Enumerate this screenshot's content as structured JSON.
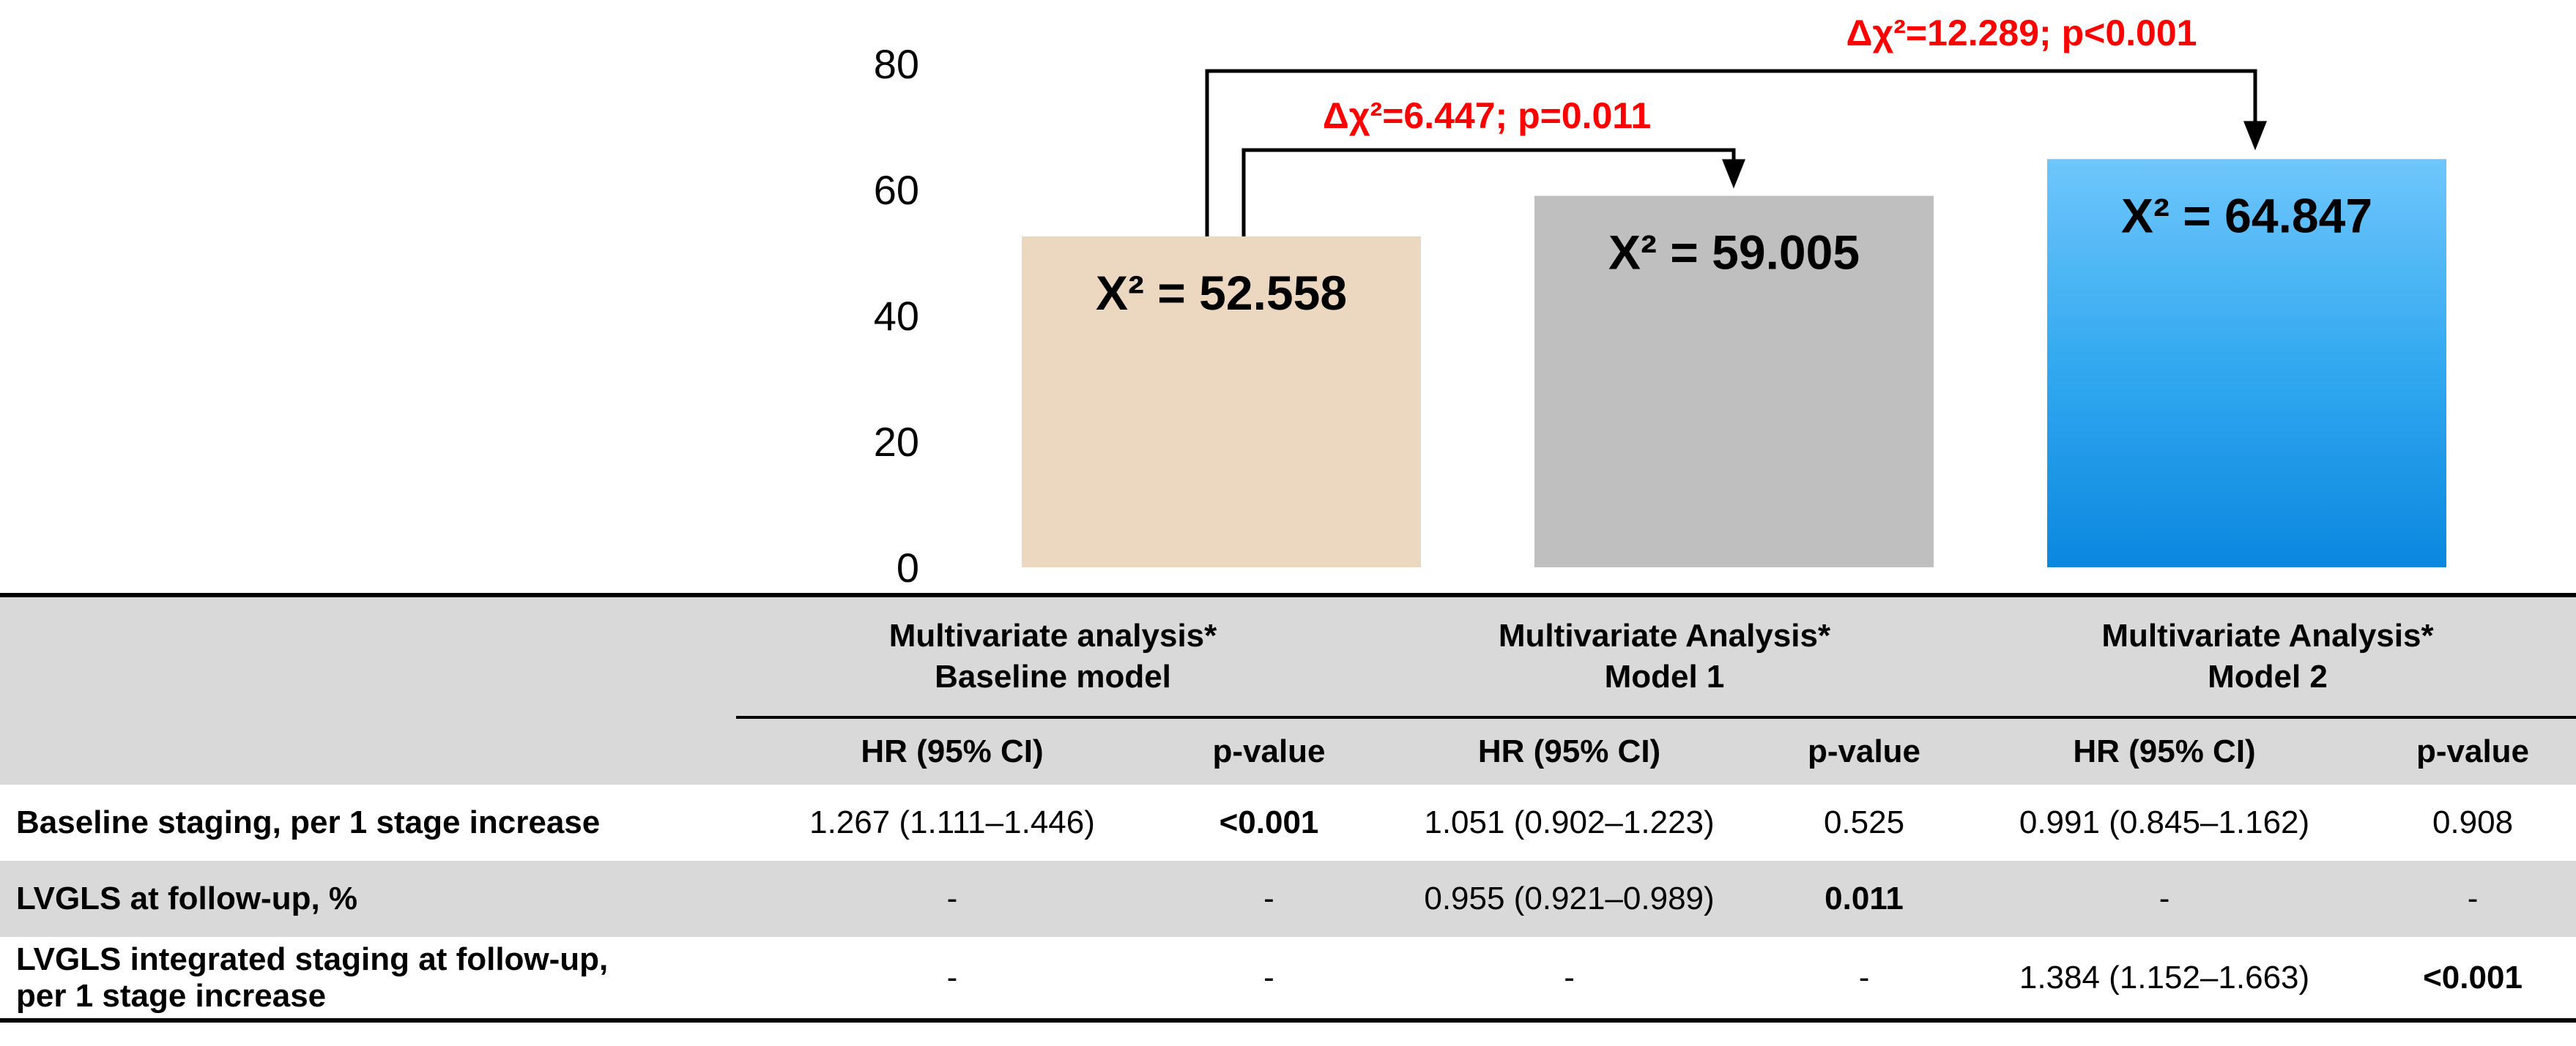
{
  "chart_data": {
    "type": "bar",
    "categories": [
      "Baseline model",
      "Model 1",
      "Model 2"
    ],
    "values": [
      52.558,
      59.005,
      64.847
    ],
    "bar_labels": [
      "Χ² = 52.558",
      "Χ² = 59.005",
      "Χ² = 64.847"
    ],
    "colors": [
      "#ecd7c0",
      "#bfbfbf",
      "#2aa2ee"
    ],
    "ylim": [
      0,
      80
    ],
    "yticks": [
      "0",
      "20",
      "40",
      "60",
      "80"
    ],
    "grid": false,
    "annotations": [
      {
        "text": "Δχ²=6.447; p=0.011",
        "from": "Baseline model",
        "to": "Model 1"
      },
      {
        "text": "Δχ²=12.289; p<0.001",
        "from": "Baseline model",
        "to": "Model 2"
      }
    ]
  },
  "table": {
    "groups": [
      {
        "line1": "Multivariate analysis*",
        "line2": "Baseline model"
      },
      {
        "line1": "Multivariate Analysis*",
        "line2": "Model 1"
      },
      {
        "line1": "Multivariate Analysis*",
        "line2": "Model 2"
      }
    ],
    "subheaders": [
      "HR (95% CI)",
      "p-value",
      "HR (95% CI)",
      "p-value",
      "HR (95% CI)",
      "p-value"
    ],
    "rows": [
      {
        "label": "Baseline staging, per 1 stage increase",
        "cells": [
          "1.267 (1.111–1.446)",
          "<0.001",
          "1.051 (0.902–1.223)",
          "0.525",
          "0.991 (0.845–1.162)",
          "0.908"
        ]
      },
      {
        "label": "LVGLS at follow-up, %",
        "cells": [
          "-",
          "-",
          "0.955 (0.921–0.989)",
          "0.011",
          "-",
          "-"
        ]
      },
      {
        "label_line1": "LVGLS integrated staging at follow-up,",
        "label_line2": "per 1 stage increase",
        "cells": [
          "-",
          "-",
          "-",
          "-",
          "1.384 (1.152–1.663)",
          "<0.001"
        ]
      }
    ]
  }
}
